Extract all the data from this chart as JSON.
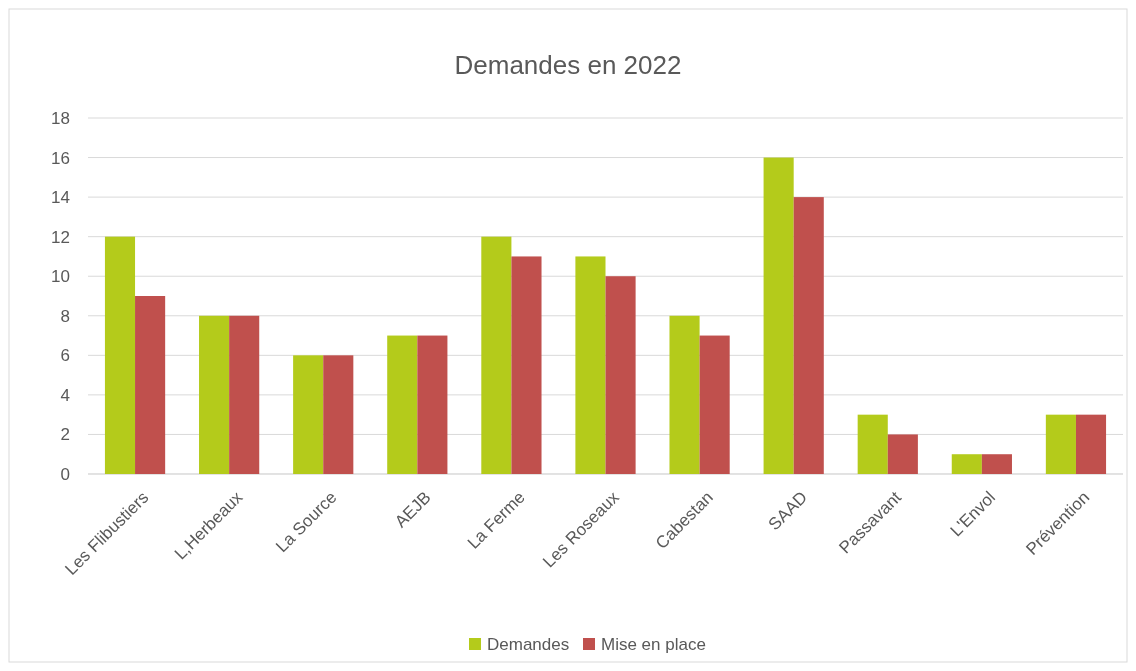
{
  "chart_data": {
    "type": "bar",
    "title": "Demandes en 2022",
    "categories": [
      "Les Flibustiers",
      "L,Herbeaux",
      "La Source",
      "AEJB",
      "La Ferme",
      "Les Roseaux",
      "Cabestan",
      "SAAD",
      "Passavant",
      "L'Envol",
      "Prévention"
    ],
    "series": [
      {
        "name": "Demandes",
        "color": "#b4cb1b",
        "values": [
          12,
          8,
          6,
          7,
          12,
          11,
          8,
          16,
          3,
          1,
          3
        ]
      },
      {
        "name": "Mise en place",
        "color": "#c0504d",
        "values": [
          9,
          8,
          6,
          7,
          11,
          10,
          7,
          14,
          2,
          1,
          3
        ]
      }
    ],
    "ylim": [
      0,
      18
    ],
    "yticks": [
      0,
      2,
      4,
      6,
      8,
      10,
      12,
      14,
      16,
      18
    ],
    "grid": "y",
    "legend": "bottom"
  }
}
